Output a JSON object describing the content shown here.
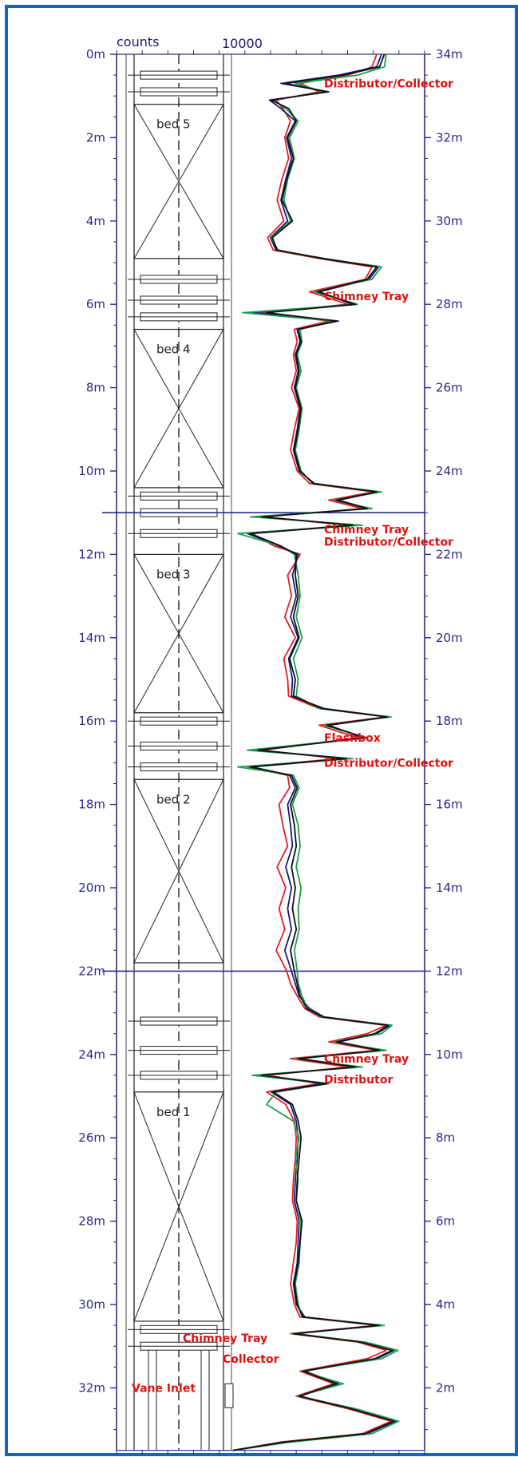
{
  "chart_data": {
    "type": "line",
    "title": "",
    "top_labels": {
      "counts": "counts",
      "scale_max": "10000"
    },
    "left_axis": {
      "ticks": [
        "0m",
        "2m",
        "4m",
        "6m",
        "8m",
        "10m",
        "12m",
        "14m",
        "16m",
        "18m",
        "20m",
        "22m",
        "24m",
        "26m",
        "28m",
        "30m",
        "32m"
      ],
      "range": [
        0,
        33.5
      ]
    },
    "right_axis": {
      "ticks": [
        "34m",
        "32m",
        "30m",
        "28m",
        "26m",
        "24m",
        "22m",
        "20m",
        "18m",
        "16m",
        "14m",
        "12m",
        "10m",
        "8m",
        "6m",
        "4m",
        "2m"
      ],
      "range": [
        34,
        0.5
      ]
    },
    "x_range_counts": [
      0,
      20000
    ],
    "reference_lines": [
      11,
      22
    ],
    "beds": [
      {
        "label": "bed 5",
        "top": 1.2,
        "bottom": 4.9
      },
      {
        "label": "bed 4",
        "top": 6.6,
        "bottom": 10.4
      },
      {
        "label": "bed 3",
        "top": 12.0,
        "bottom": 15.8
      },
      {
        "label": "bed 2",
        "top": 17.4,
        "bottom": 21.8
      },
      {
        "label": "bed 1",
        "top": 24.9,
        "bottom": 30.4
      }
    ],
    "annotations": [
      {
        "text": "Distributor/Collector",
        "depth": 0.7
      },
      {
        "text": "Chimney Tray",
        "depth": 5.8
      },
      {
        "text": "Chimney Tray",
        "depth": 11.4
      },
      {
        "text": "Distributor/Collector",
        "depth": 11.7
      },
      {
        "text": "Flashbox",
        "depth": 16.4
      },
      {
        "text": "Distributor/Collector",
        "depth": 17.0
      },
      {
        "text": "Chimney Tray",
        "depth": 24.1
      },
      {
        "text": "Distributor",
        "depth": 24.6
      },
      {
        "text": "Chimney Tray",
        "depth": 30.8
      },
      {
        "text": "Collector",
        "depth": 31.3
      },
      {
        "text": "Vane Inlet",
        "depth": 32.0
      }
    ],
    "series": [
      {
        "color": "#e02020",
        "depths": [
          0,
          0.3,
          0.5,
          0.7,
          0.9,
          1.1,
          1.3,
          1.6,
          2.0,
          2.5,
          3.0,
          3.5,
          4.0,
          4.4,
          4.7,
          4.9,
          5.1,
          5.4,
          5.7,
          6.0,
          6.2,
          6.4,
          6.6,
          6.9,
          7.2,
          7.6,
          8.0,
          8.5,
          9.0,
          9.5,
          10.0,
          10.3,
          10.5,
          10.7,
          10.9,
          11.1,
          11.3,
          11.5,
          11.8,
          12.0,
          12.5,
          13.0,
          13.5,
          14.0,
          14.5,
          15.0,
          15.4,
          15.7,
          15.9,
          16.1,
          16.4,
          16.7,
          16.9,
          17.1,
          17.3,
          17.6,
          18.0,
          18.5,
          19.0,
          19.5,
          20.0,
          20.5,
          21.0,
          21.5,
          22.0,
          22.3,
          22.6,
          22.9,
          23.1,
          23.3,
          23.5,
          23.7,
          23.9,
          24.1,
          24.3,
          24.5,
          24.7,
          24.9,
          25.2,
          25.6,
          26.0,
          26.5,
          27.0,
          27.5,
          28.0,
          28.5,
          29.0,
          29.5,
          30.0,
          30.3,
          30.5,
          30.7,
          30.9,
          31.1,
          31.3,
          31.6,
          31.9,
          32.2,
          32.5,
          32.8,
          33.1,
          33.3,
          33.5
        ],
        "values": [
          15000,
          14500,
          12000,
          7000,
          9000,
          4500,
          5200,
          6000,
          5400,
          5800,
          5100,
          4600,
          5300,
          3600,
          4200,
          9000,
          14500,
          13800,
          8000,
          12000,
          3000,
          10000,
          6400,
          6700,
          6300,
          6600,
          6100,
          6900,
          6400,
          6000,
          6700,
          8000,
          14700,
          10000,
          13500,
          3200,
          12000,
          2000,
          4300,
          7000,
          5700,
          6100,
          5400,
          6500,
          5300,
          5700,
          5800,
          9000,
          16000,
          9000,
          13000,
          3000,
          11000,
          1500,
          5700,
          5900,
          4800,
          5200,
          5700,
          4600,
          5500,
          4800,
          5400,
          4500,
          5600,
          6000,
          6700,
          7500,
          9000,
          16000,
          14000,
          10000,
          15000,
          6000,
          12000,
          3500,
          9000,
          3500,
          5500,
          6400,
          6600,
          6500,
          6300,
          6200,
          6700,
          6600,
          6300,
          6000,
          6400,
          7000,
          15000,
          6000,
          13000,
          16000,
          14000,
          7000,
          10500,
          6600,
          12000,
          16500,
          13500,
          5000,
          0
        ]
      },
      {
        "color": "#1a1a80",
        "depths": [
          0,
          0.3,
          0.5,
          0.7,
          0.9,
          1.1,
          1.3,
          1.6,
          2.0,
          2.5,
          3.0,
          3.5,
          4.0,
          4.4,
          4.7,
          4.9,
          5.1,
          5.4,
          5.7,
          6.0,
          6.2,
          6.4,
          6.6,
          6.9,
          7.2,
          7.6,
          8.0,
          8.5,
          9.0,
          9.5,
          10.0,
          10.3,
          10.5,
          10.7,
          10.9,
          11.1,
          11.3,
          11.5,
          11.8,
          12.0,
          12.5,
          13.0,
          13.5,
          14.0,
          14.5,
          15.0,
          15.4,
          15.7,
          15.9,
          16.1,
          16.4,
          16.7,
          16.9,
          17.1,
          17.3,
          17.6,
          18.0,
          18.5,
          19.0,
          19.5,
          20.0,
          20.5,
          21.0,
          21.5,
          22.0,
          22.3,
          22.6,
          22.9,
          23.1,
          23.3,
          23.5,
          23.7,
          23.9,
          24.1,
          24.3,
          24.5,
          24.7,
          24.9,
          25.2,
          25.6,
          26.0,
          26.5,
          27.0,
          27.5,
          28.0,
          28.5,
          29.0,
          29.5,
          30.0,
          30.3,
          30.5,
          30.7,
          30.9,
          31.1,
          31.3,
          31.6,
          31.9,
          32.2,
          32.5,
          32.8,
          33.1,
          33.3,
          33.5
        ],
        "values": [
          15500,
          15000,
          11000,
          5000,
          10000,
          3800,
          5000,
          6500,
          5600,
          6100,
          5500,
          5000,
          5700,
          3900,
          4500,
          9500,
          15200,
          14200,
          9000,
          12500,
          2000,
          11000,
          6700,
          7000,
          6500,
          6800,
          6400,
          7000,
          6700,
          6300,
          6900,
          8500,
          15200,
          11000,
          14200,
          2500,
          13000,
          1500,
          4800,
          6800,
          6200,
          6600,
          6000,
          6800,
          5800,
          6200,
          6100,
          9500,
          16300,
          10000,
          13500,
          2200,
          12000,
          2000,
          5900,
          6500,
          5700,
          6000,
          6200,
          5500,
          6100,
          5700,
          6100,
          5400,
          6100,
          6500,
          6900,
          8000,
          9500,
          16400,
          15000,
          11000,
          15500,
          7000,
          13000,
          2500,
          9500,
          4000,
          6000,
          6600,
          6800,
          6700,
          6500,
          6400,
          6900,
          6800,
          6700,
          6300,
          6600,
          7500,
          15500,
          6500,
          13500,
          16800,
          15000,
          7500,
          11000,
          7000,
          12500,
          17000,
          14000,
          5500,
          0
        ]
      },
      {
        "color": "#1aa050",
        "depths": [
          0,
          0.3,
          0.5,
          0.7,
          0.9,
          1.1,
          1.3,
          1.6,
          2.0,
          2.5,
          3.0,
          3.5,
          4.0,
          4.4,
          4.7,
          4.9,
          5.1,
          5.4,
          5.7,
          6.0,
          6.2,
          6.4,
          6.6,
          6.9,
          7.2,
          7.6,
          8.0,
          8.5,
          9.0,
          9.5,
          10.0,
          10.3,
          10.5,
          10.7,
          10.9,
          11.1,
          11.3,
          11.5,
          11.8,
          12.0,
          12.5,
          13.0,
          13.5,
          14.0,
          14.5,
          15.0,
          15.4,
          15.7,
          15.9,
          16.1,
          16.4,
          16.7,
          16.9,
          17.1,
          17.3,
          17.6,
          18.0,
          18.5,
          19.0,
          19.5,
          20.0,
          20.5,
          21.0,
          21.5,
          22.0,
          22.3,
          22.6,
          22.9,
          23.1,
          23.3,
          23.5,
          23.7,
          23.9,
          24.1,
          24.3,
          24.5,
          24.7,
          24.9,
          25.2,
          25.6,
          26.0,
          26.5,
          27.0,
          27.5,
          28.0,
          28.5,
          29.0,
          29.5,
          30.0,
          30.3,
          30.5,
          30.7,
          30.9,
          31.1,
          31.3,
          31.6,
          31.9,
          32.2,
          32.5,
          32.8,
          33.1,
          33.3,
          33.5
        ],
        "values": [
          16000,
          15800,
          13000,
          6500,
          9500,
          4200,
          5500,
          6800,
          5900,
          6400,
          5700,
          5300,
          6000,
          4000,
          4700,
          9200,
          15500,
          14500,
          8500,
          13000,
          1000,
          10500,
          7000,
          7200,
          6700,
          7100,
          6600,
          7200,
          6900,
          6500,
          7100,
          8300,
          15500,
          10500,
          14500,
          1800,
          13500,
          500,
          5000,
          6400,
          6800,
          7000,
          6600,
          7200,
          6300,
          6800,
          6600,
          9000,
          16500,
          9500,
          14000,
          1500,
          12500,
          500,
          6300,
          6900,
          6200,
          6800,
          7000,
          6600,
          7100,
          6800,
          6900,
          6400,
          6700,
          6800,
          7200,
          7800,
          9200,
          16600,
          15500,
          10500,
          16000,
          6500,
          13500,
          2000,
          10000,
          4500,
          3500,
          6300,
          6900,
          6500,
          6800,
          6600,
          7100,
          7000,
          6900,
          6500,
          6800,
          7200,
          15800,
          6200,
          13800,
          17200,
          15500,
          7200,
          11500,
          6800,
          12800,
          17300,
          14500,
          6000,
          0
        ]
      },
      {
        "color": "#111111",
        "depths": [
          0,
          0.3,
          0.5,
          0.7,
          0.9,
          1.1,
          1.3,
          1.6,
          2.0,
          2.5,
          3.0,
          3.5,
          4.0,
          4.4,
          4.7,
          4.9,
          5.1,
          5.4,
          5.7,
          6.0,
          6.2,
          6.4,
          6.6,
          6.9,
          7.2,
          7.6,
          8.0,
          8.5,
          9.0,
          9.5,
          10.0,
          10.3,
          10.5,
          10.7,
          10.9,
          11.1,
          11.3,
          11.5,
          11.8,
          12.0,
          12.5,
          13.0,
          13.5,
          14.0,
          14.5,
          15.0,
          15.4,
          15.7,
          15.9,
          16.1,
          16.4,
          16.7,
          16.9,
          17.1,
          17.3,
          17.6,
          18.0,
          18.5,
          19.0,
          19.5,
          20.0,
          20.5,
          21.0,
          21.5,
          22.0,
          22.3,
          22.6,
          22.9,
          23.1,
          23.3,
          23.5,
          23.7,
          23.9,
          24.1,
          24.3,
          24.5,
          24.7,
          24.9,
          25.2,
          25.6,
          26.0,
          26.5,
          27.0,
          27.5,
          28.0,
          28.5,
          29.0,
          29.5,
          30.0,
          30.3,
          30.5,
          30.7,
          30.9,
          31.1,
          31.3,
          31.6,
          31.9,
          32.2,
          32.5,
          32.8,
          33.1,
          33.3,
          33.5
        ],
        "values": [
          15800,
          15300,
          11500,
          5500,
          9800,
          4000,
          5800,
          6600,
          5700,
          6300,
          5600,
          5100,
          6200,
          4100,
          4600,
          9300,
          15000,
          14000,
          8800,
          12800,
          3500,
          10800,
          6800,
          7100,
          6600,
          6900,
          6500,
          7100,
          6800,
          6400,
          7000,
          8400,
          15000,
          10800,
          14000,
          3000,
          12500,
          1800,
          5000,
          6600,
          6500,
          6800,
          6300,
          6900,
          5900,
          6500,
          6300,
          9300,
          16100,
          9800,
          13800,
          2600,
          11800,
          1800,
          6100,
          6700,
          6000,
          6400,
          6600,
          6100,
          6500,
          6200,
          6600,
          6000,
          6400,
          6700,
          7000,
          7700,
          9400,
          16200,
          14800,
          10800,
          15300,
          6800,
          12800,
          3000,
          9800,
          4200,
          6200,
          6800,
          7100,
          6900,
          6700,
          6600,
          7200,
          7000,
          6800,
          6400,
          6700,
          7300,
          15300,
          6300,
          13300,
          16600,
          14800,
          7300,
          10800,
          6900,
          12300,
          16800,
          13800,
          5300,
          0
        ]
      }
    ]
  }
}
